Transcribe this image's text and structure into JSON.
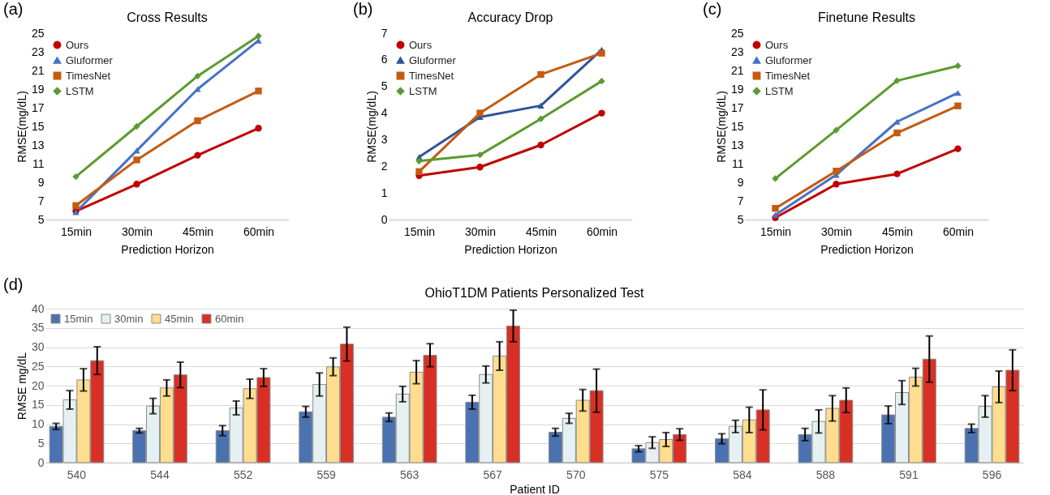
{
  "chart_data": [
    {
      "type": "line",
      "title": "Cross Results",
      "xlabel": "Prediction Horizon",
      "ylabel": "RMSE(mg/dL)",
      "annotations": [
        "(a)"
      ],
      "categories": [
        "15min",
        "30min",
        "45min",
        "60min"
      ],
      "ylim": [
        5,
        25
      ],
      "yticks": [
        5,
        7,
        9,
        11,
        13,
        15,
        17,
        19,
        21,
        23,
        25
      ],
      "legend": "top left",
      "series": [
        {
          "name": "Ours",
          "color": "#c00000",
          "marker": "circle",
          "values": [
            5.9,
            8.8,
            11.9,
            14.8
          ]
        },
        {
          "name": "Gluformer",
          "color": "#4472c4",
          "marker": "triangle",
          "values": [
            5.8,
            12.4,
            19.0,
            24.2
          ]
        },
        {
          "name": "TimesNet",
          "color": "#c55a11",
          "marker": "square",
          "values": [
            6.5,
            11.4,
            15.6,
            18.8
          ]
        },
        {
          "name": "LSTM",
          "color": "#5b9b2f",
          "marker": "diamond",
          "values": [
            9.6,
            15.0,
            20.4,
            24.7
          ]
        }
      ]
    },
    {
      "type": "line",
      "title": "Accuracy Drop",
      "xlabel": "Prediction Horizon",
      "ylabel": "RMSE(mg/dL)",
      "annotations": [
        "(b)"
      ],
      "categories": [
        "15min",
        "30min",
        "45min",
        "60min"
      ],
      "ylim": [
        0,
        7
      ],
      "yticks": [
        0,
        1,
        2,
        3,
        4,
        5,
        6,
        7
      ],
      "legend": "top left",
      "series": [
        {
          "name": "Ours",
          "color": "#c00000",
          "marker": "circle",
          "values": [
            1.65,
            1.97,
            2.8,
            4.0
          ]
        },
        {
          "name": "Gluformer",
          "color": "#2f5597",
          "marker": "triangle",
          "values": [
            2.35,
            3.85,
            4.28,
            6.38
          ]
        },
        {
          "name": "TimesNet",
          "color": "#c55a11",
          "marker": "square",
          "values": [
            1.8,
            4.0,
            5.45,
            6.25
          ]
        },
        {
          "name": "LSTM",
          "color": "#5b9b2f",
          "marker": "diamond",
          "values": [
            2.2,
            2.43,
            3.78,
            5.2
          ]
        }
      ]
    },
    {
      "type": "line",
      "title": "Finetune Results",
      "xlabel": "Prediction Horizon",
      "ylabel": "RMSE(mg/dL)",
      "annotations": [
        "(c)"
      ],
      "categories": [
        "15min",
        "30min",
        "45min",
        "60min"
      ],
      "ylim": [
        5,
        25
      ],
      "yticks": [
        5,
        7,
        9,
        11,
        13,
        15,
        17,
        19,
        21,
        23,
        25
      ],
      "legend": "top left",
      "series": [
        {
          "name": "Ours",
          "color": "#c00000",
          "marker": "circle",
          "values": [
            5.2,
            8.8,
            9.9,
            12.6
          ]
        },
        {
          "name": "Gluformer",
          "color": "#4472c4",
          "marker": "triangle",
          "values": [
            5.5,
            9.8,
            15.5,
            18.6
          ]
        },
        {
          "name": "TimesNet",
          "color": "#c55a11",
          "marker": "square",
          "values": [
            6.2,
            10.2,
            14.3,
            17.2
          ]
        },
        {
          "name": "LSTM",
          "color": "#5b9b2f",
          "marker": "diamond",
          "values": [
            9.4,
            14.6,
            19.9,
            21.5
          ]
        }
      ]
    },
    {
      "type": "bar",
      "title": "OhioT1DM Patients Personalized Test",
      "xlabel": "Patient ID",
      "ylabel": "RMSE mg/dL",
      "annotations": [
        "(d)"
      ],
      "categories": [
        "540",
        "544",
        "552",
        "559",
        "563",
        "567",
        "570",
        "575",
        "584",
        "588",
        "591",
        "596"
      ],
      "ylim": [
        0,
        40
      ],
      "yticks": [
        0,
        5,
        10,
        15,
        20,
        25,
        30,
        35,
        40
      ],
      "grid": "y",
      "legend": "top left",
      "series": [
        {
          "name": "15min",
          "color": "#4a72b0",
          "values": [
            9.4,
            8.3,
            8.3,
            13.2,
            11.8,
            15.7,
            7.9,
            3.6,
            6.2,
            7.3,
            12.4,
            8.9
          ],
          "errors": [
            0.8,
            0.6,
            1.3,
            1.4,
            1.1,
            1.8,
            1.0,
            0.8,
            1.3,
            1.6,
            2.3,
            1.1
          ]
        },
        {
          "name": "30min",
          "color": "#e5f0f2",
          "values": [
            16.3,
            14.7,
            14.2,
            20.3,
            17.8,
            22.9,
            11.5,
            5.2,
            9.4,
            10.7,
            18.2,
            14.6
          ],
          "errors": [
            2.4,
            2.0,
            1.8,
            3.0,
            2.0,
            2.2,
            1.3,
            1.5,
            1.6,
            3.0,
            3.1,
            2.8
          ]
        },
        {
          "name": "45min",
          "color": "#ffdd8f",
          "values": [
            21.5,
            19.4,
            19.2,
            24.9,
            23.5,
            27.7,
            16.2,
            6.0,
            11.1,
            14.1,
            22.2,
            19.7
          ],
          "errors": [
            2.9,
            2.1,
            2.5,
            2.3,
            3.0,
            3.7,
            2.8,
            1.8,
            3.3,
            3.3,
            2.3,
            4.1
          ]
        },
        {
          "name": "60min",
          "color": "#d93025",
          "values": [
            26.5,
            22.8,
            22.1,
            30.8,
            27.9,
            35.5,
            18.7,
            7.3,
            13.7,
            16.2,
            26.9,
            24.0
          ],
          "errors": [
            3.6,
            3.3,
            2.3,
            4.4,
            3.0,
            4.1,
            5.6,
            1.5,
            5.2,
            3.2,
            6.0,
            5.3
          ]
        }
      ]
    }
  ]
}
